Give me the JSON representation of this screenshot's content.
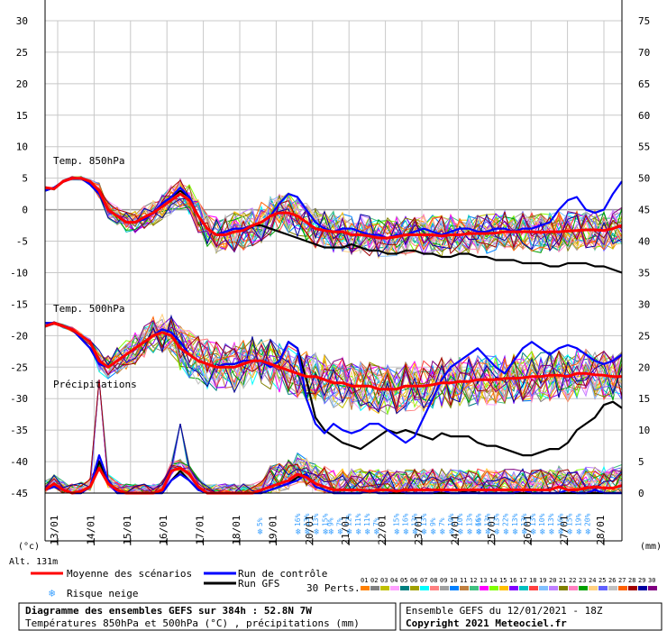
{
  "chart_data": {
    "type": "line",
    "x_labels": [
      "13/01",
      "14/01",
      "15/01",
      "16/01",
      "17/01",
      "18/01",
      "19/01",
      "20/01",
      "21/01",
      "22/01",
      "23/01",
      "24/01",
      "25/01",
      "26/01",
      "27/01",
      "28/01"
    ],
    "left_ticks": [
      30,
      25,
      20,
      15,
      10,
      5,
      0,
      -5,
      -10,
      -15,
      -20,
      -25,
      -30,
      -35,
      -40,
      -45
    ],
    "right_ticks": [
      75,
      70,
      65,
      60,
      55,
      50,
      45,
      40,
      35,
      30,
      25,
      20,
      15,
      10,
      5,
      0
    ],
    "ylim_left": [
      -45,
      30
    ],
    "ylim_right": [
      0,
      75
    ],
    "left_unit": "(°c)",
    "right_unit": "(mm)",
    "altitude": "Alt. 131m",
    "section_labels": {
      "t850": "Temp. 850hPa",
      "t500": "Temp. 500hPa",
      "precip": "Précipitations"
    },
    "series": [
      {
        "name": "Moyenne des scénarios",
        "color": "#ff0000",
        "width": 3,
        "t850": [
          3.5,
          3.3,
          4.5,
          5,
          5,
          4.5,
          3,
          0,
          -1,
          -2,
          -2,
          -1.2,
          -0.5,
          0.5,
          1.5,
          2.5,
          1.5,
          -1,
          -3,
          -4,
          -4,
          -3.5,
          -3.3,
          -2.5,
          -2,
          -1,
          -0.5,
          -0.5,
          -1,
          -2,
          -3,
          -3.3,
          -3.5,
          -3.5,
          -4,
          -4,
          -4.2,
          -4.5,
          -4.5,
          -4.3,
          -4,
          -4,
          -4,
          -4,
          -4.2,
          -4,
          -4,
          -3.8,
          -3.8,
          -3.8,
          -3.7,
          -3.5,
          -3.5,
          -3.5,
          -3.5,
          -3.6,
          -3.5,
          -3.5,
          -3.4,
          -3.3,
          -3.2,
          -3.2,
          -3.3,
          -3,
          -2.5
        ],
        "t500": [
          -18.5,
          -18,
          -18.5,
          -19,
          -20,
          -21,
          -24,
          -25,
          -24,
          -23,
          -22,
          -21,
          -20,
          -19.5,
          -20,
          -22,
          -23,
          -24,
          -24.5,
          -25,
          -25,
          -25,
          -24.5,
          -24,
          -24,
          -24.5,
          -25,
          -25.5,
          -26,
          -26.5,
          -26.5,
          -27,
          -27.5,
          -27.5,
          -28,
          -28,
          -28,
          -28.5,
          -28.5,
          -28.5,
          -28,
          -28,
          -28,
          -27.8,
          -27.5,
          -27.5,
          -27.3,
          -27.3,
          -27,
          -27,
          -27,
          -26.8,
          -26.8,
          -26.7,
          -26.5,
          -26.5,
          -26.3,
          -26.3,
          -26.5,
          -26,
          -26,
          -26.2,
          -26.3,
          -26.5,
          -26.5
        ],
        "precip": [
          0.5,
          1.5,
          0.5,
          0,
          0.3,
          1,
          4,
          1.5,
          0.5,
          0,
          0,
          0,
          0,
          0.5,
          3.5,
          4,
          3,
          1,
          0,
          0,
          0,
          0,
          0,
          0,
          0.5,
          1,
          1.5,
          2,
          3,
          2.5,
          1.5,
          1,
          0.5,
          0.5,
          0.5,
          0.5,
          0.3,
          0.5,
          0.5,
          0.3,
          0.5,
          0.5,
          0.5,
          0.5,
          0.5,
          0.5,
          0.5,
          0.5,
          0.5,
          0.5,
          0.5,
          0.5,
          0.5,
          0.5,
          0.5,
          0.5,
          0.5,
          1,
          0.5,
          0.5,
          0.8,
          1,
          0.8,
          0.8,
          1.2
        ]
      },
      {
        "name": "Run de contrôle",
        "color": "#0000ff",
        "width": 2.2,
        "t850": [
          3,
          3.5,
          4.5,
          5,
          5,
          4,
          2.5,
          0,
          -1,
          -2,
          -2,
          -1.5,
          -0.5,
          1,
          2,
          3.5,
          2,
          -1,
          -3,
          -4,
          -3.5,
          -3,
          -3,
          -2.5,
          -2,
          -1,
          1,
          2.5,
          2,
          0,
          -2,
          -3,
          -3.5,
          -3,
          -3,
          -3.5,
          -4,
          -4,
          -4.5,
          -4,
          -4,
          -3.5,
          -3,
          -3.5,
          -4,
          -3.5,
          -3,
          -3,
          -3.5,
          -3.5,
          -3,
          -3,
          -3.5,
          -3,
          -3,
          -2.5,
          -2,
          0,
          1.5,
          2,
          0,
          -0.5,
          0,
          2.5,
          4.5
        ],
        "t500": [
          -18,
          -18,
          -18.5,
          -19,
          -20.5,
          -22,
          -24.5,
          -25,
          -24,
          -23,
          -22,
          -21,
          -20,
          -19,
          -19.5,
          -21,
          -23,
          -24,
          -24.5,
          -25,
          -24.5,
          -24.5,
          -24,
          -24,
          -24,
          -25,
          -24,
          -21,
          -22,
          -30,
          -34,
          -35.5,
          -34,
          -35,
          -35.5,
          -35,
          -34,
          -34,
          -35,
          -36,
          -37,
          -36,
          -33,
          -30,
          -27,
          -25,
          -24,
          -23,
          -22,
          -23.5,
          -25,
          -26,
          -24,
          -22,
          -21,
          -22,
          -23,
          -22,
          -21.5,
          -22,
          -23,
          -24,
          -24.5,
          -24,
          -23
        ],
        "precip": [
          0.5,
          1,
          0.5,
          0,
          0,
          1,
          6,
          2,
          0,
          0,
          0,
          0,
          0,
          0,
          2,
          3,
          2,
          0.5,
          0,
          0,
          0,
          0,
          0,
          0,
          0,
          0.5,
          1,
          1.5,
          2,
          3,
          1,
          0.5,
          0,
          0,
          0,
          0,
          0.3,
          0,
          0,
          0.5,
          0,
          0,
          0,
          0,
          0.5,
          0,
          0,
          0,
          0,
          0,
          0,
          0,
          0,
          0.5,
          0,
          0,
          0,
          0,
          0.5,
          0,
          0,
          0.5,
          0,
          0,
          0
        ]
      },
      {
        "name": "Run GFS",
        "color": "#000000",
        "width": 2.2,
        "t850": [
          3,
          3.5,
          4.5,
          5,
          5,
          4,
          2.5,
          0,
          -1,
          -2,
          -2,
          -1.5,
          -0.5,
          1,
          2,
          3,
          2,
          -1,
          -3,
          -4,
          -3.5,
          -3,
          -3,
          -2.5,
          -2.5,
          -3,
          -3.5,
          -4,
          -4.5,
          -5,
          -5.5,
          -6,
          -6,
          -6,
          -5.5,
          -6,
          -6.5,
          -6.5,
          -7,
          -7,
          -6.5,
          -6.5,
          -7,
          -7,
          -7.5,
          -7.5,
          -7,
          -7,
          -7.5,
          -7.5,
          -8,
          -8,
          -8,
          -8.5,
          -8.5,
          -8.5,
          -9,
          -9,
          -8.5,
          -8.5,
          -8.5,
          -9,
          -9,
          -9.5,
          -10
        ],
        "t500": [
          -18,
          -18,
          -18.5,
          -19,
          -20.5,
          -22,
          -24.5,
          -25,
          -24,
          -23,
          -22,
          -21,
          -20,
          -19,
          -19.5,
          -21,
          -23,
          -24,
          -24.5,
          -25,
          -24.5,
          -24.5,
          -24,
          -24,
          -24,
          -25,
          -24,
          -21,
          -22,
          -27,
          -33,
          -35,
          -36,
          -37,
          -37.5,
          -38,
          -37,
          -36,
          -35,
          -35.5,
          -35,
          -35.5,
          -36,
          -36.5,
          -35.5,
          -36,
          -36,
          -36,
          -37,
          -37.5,
          -37.5,
          -38,
          -38.5,
          -39,
          -39,
          -38.5,
          -38,
          -38,
          -37,
          -35,
          -34,
          -33,
          -31,
          -30.5,
          -31.5
        ],
        "precip": [
          0.5,
          1,
          0.5,
          0,
          0,
          1,
          5,
          2,
          0,
          0,
          0,
          0,
          0,
          0,
          2,
          3.5,
          2,
          0.5,
          0,
          0,
          0,
          0,
          0,
          0,
          0,
          0.5,
          1,
          1.5,
          2.5,
          3,
          1,
          0.5,
          0,
          0,
          0,
          0,
          0.5,
          0,
          0,
          0,
          0,
          0,
          0,
          0,
          0,
          0,
          0,
          0.5,
          0,
          0,
          0,
          0,
          0,
          0,
          0,
          0,
          0,
          0,
          0,
          0,
          0,
          0,
          0,
          0,
          0
        ]
      }
    ],
    "snow_risk": [
      {
        "x": 0.37,
        "values": [
          "5%"
        ]
      },
      {
        "x": 0.436,
        "values": [
          "16%",
          "13%",
          "13%",
          "15%"
        ]
      },
      {
        "x": 0.493,
        "values": [
          "9%",
          "7%",
          "12%",
          "11%",
          "11%",
          "7%"
        ]
      },
      {
        "x": 0.607,
        "values": [
          "15%",
          "16%",
          "13%",
          "13%",
          "9%",
          "7%",
          "10%",
          "10%",
          "13%",
          "16%"
        ]
      },
      {
        "x": 0.749,
        "values": [
          "6%",
          "13%",
          "13%",
          "22%",
          "13%",
          "13%",
          "13%",
          "10%",
          "13%",
          "16%",
          "15%",
          "19%",
          "20%"
        ]
      }
    ]
  },
  "legend": {
    "mean": "Moyenne des scénarios",
    "control": "Run de contrôle",
    "gfs": "Run GFS",
    "snow": "Risque neige",
    "perts_label": "30 Perts.",
    "perts_numbers": [
      "01",
      "02",
      "03",
      "04",
      "05",
      "06",
      "07",
      "08",
      "09",
      "10",
      "11",
      "12",
      "13",
      "14",
      "15",
      "16",
      "17",
      "18",
      "19",
      "20",
      "21",
      "22",
      "23",
      "24",
      "25",
      "26",
      "27",
      "28",
      "29",
      "30"
    ],
    "perts_colors": [
      "#ff8000",
      "#808080",
      "#c0c000",
      "#ffa0ff",
      "#008080",
      "#a0a000",
      "#00ffff",
      "#ff8080",
      "#a0a0a0",
      "#0080ff",
      "#c08040",
      "#40c080",
      "#ff00ff",
      "#80ff00",
      "#ffc000",
      "#8000ff",
      "#00c0c0",
      "#ff4040",
      "#80c0ff",
      "#c080ff",
      "#808000",
      "#ff80c0",
      "#00a000",
      "#ffd080",
      "#6060ff",
      "#c0c0c0",
      "#ff6000",
      "#a00000",
      "#0000a0",
      "#800080"
    ]
  },
  "footer": {
    "title": "Diagramme des ensembles GEFS sur 384h : 52.8N 7W",
    "subtitle": "Températures 850hPa et 500hPa (°C) , précipitations (mm)",
    "ensemble": "Ensemble GEFS du 12/01/2021 - 18Z",
    "copyright": "Copyright 2021 Meteociel.fr"
  }
}
